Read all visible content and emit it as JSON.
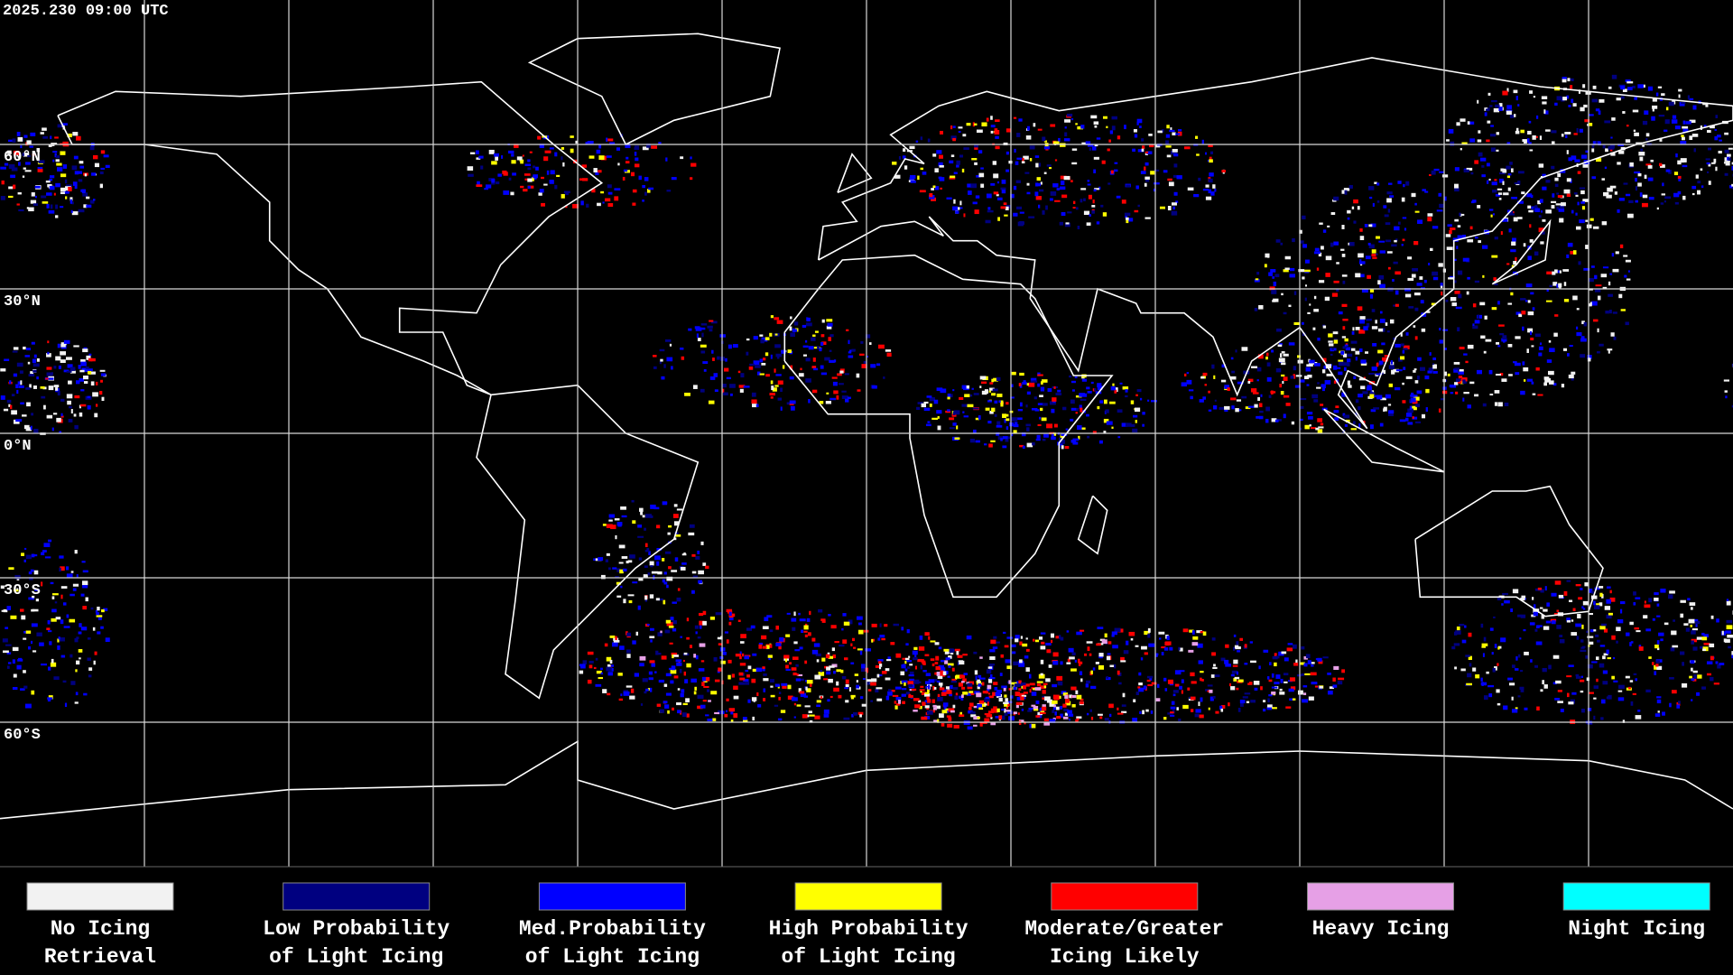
{
  "timestamp": "2025.230 09:00 UTC",
  "latitude_labels": [
    "60°N",
    "30°N",
    "0°N",
    "30°S",
    "60°S"
  ],
  "legend": [
    {
      "lines": [
        "No Icing",
        "Retrieval"
      ],
      "color": "#f2f2f2"
    },
    {
      "lines": [
        "Low Probability",
        "of Light Icing"
      ],
      "color": "#000080"
    },
    {
      "lines": [
        "Med.Probability",
        "of Light Icing"
      ],
      "color": "#0000ff"
    },
    {
      "lines": [
        "High Probability",
        "of Light Icing"
      ],
      "color": "#ffff00"
    },
    {
      "lines": [
        "Moderate/Greater",
        "Icing Likely"
      ],
      "color": "#ff0000"
    },
    {
      "lines": [
        "Heavy Icing"
      ],
      "color": "#e6a0e6"
    },
    {
      "lines": [
        "Night Icing"
      ],
      "color": "#00ffff"
    }
  ]
}
